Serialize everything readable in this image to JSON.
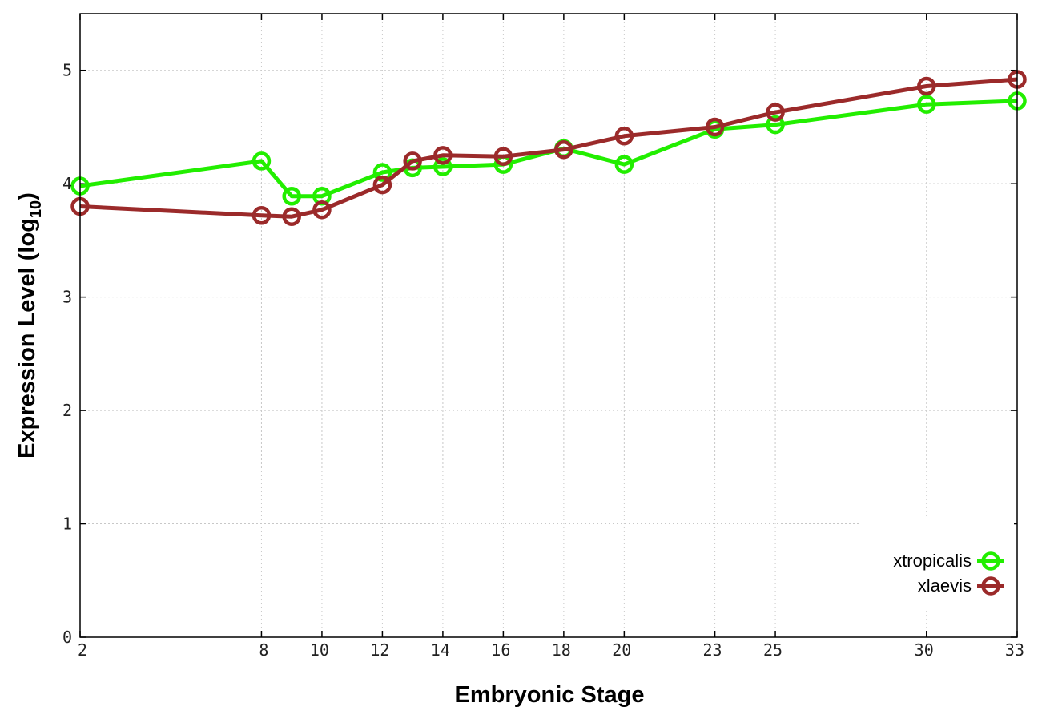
{
  "chart_data": {
    "type": "line",
    "xlabel": "Embryonic Stage",
    "ylabel_main": "Expression Level (log",
    "ylabel_sub": "10",
    "ylabel_close": ")",
    "x": [
      2,
      8,
      9,
      10,
      12,
      13,
      14,
      16,
      18,
      20,
      23,
      25,
      30,
      33
    ],
    "x_ticks": [
      2,
      8,
      10,
      12,
      14,
      16,
      18,
      20,
      23,
      25,
      30,
      33
    ],
    "y_ticks": [
      0,
      1,
      2,
      3,
      4,
      5
    ],
    "xlim": [
      2,
      33
    ],
    "ylim": [
      0,
      5.5
    ],
    "grid": true,
    "legend_position": "bottom-right",
    "series": [
      {
        "name": "xtropicalis",
        "color": "#22ee00",
        "values": [
          3.98,
          4.2,
          3.89,
          3.89,
          4.1,
          4.14,
          4.15,
          4.17,
          4.31,
          4.17,
          4.48,
          4.52,
          4.7,
          4.73
        ]
      },
      {
        "name": "xlaevis",
        "color": "#9b2a2a",
        "values": [
          3.8,
          3.72,
          3.71,
          3.77,
          3.99,
          4.2,
          4.25,
          4.24,
          4.3,
          4.42,
          4.5,
          4.63,
          4.86,
          4.92
        ]
      }
    ]
  }
}
